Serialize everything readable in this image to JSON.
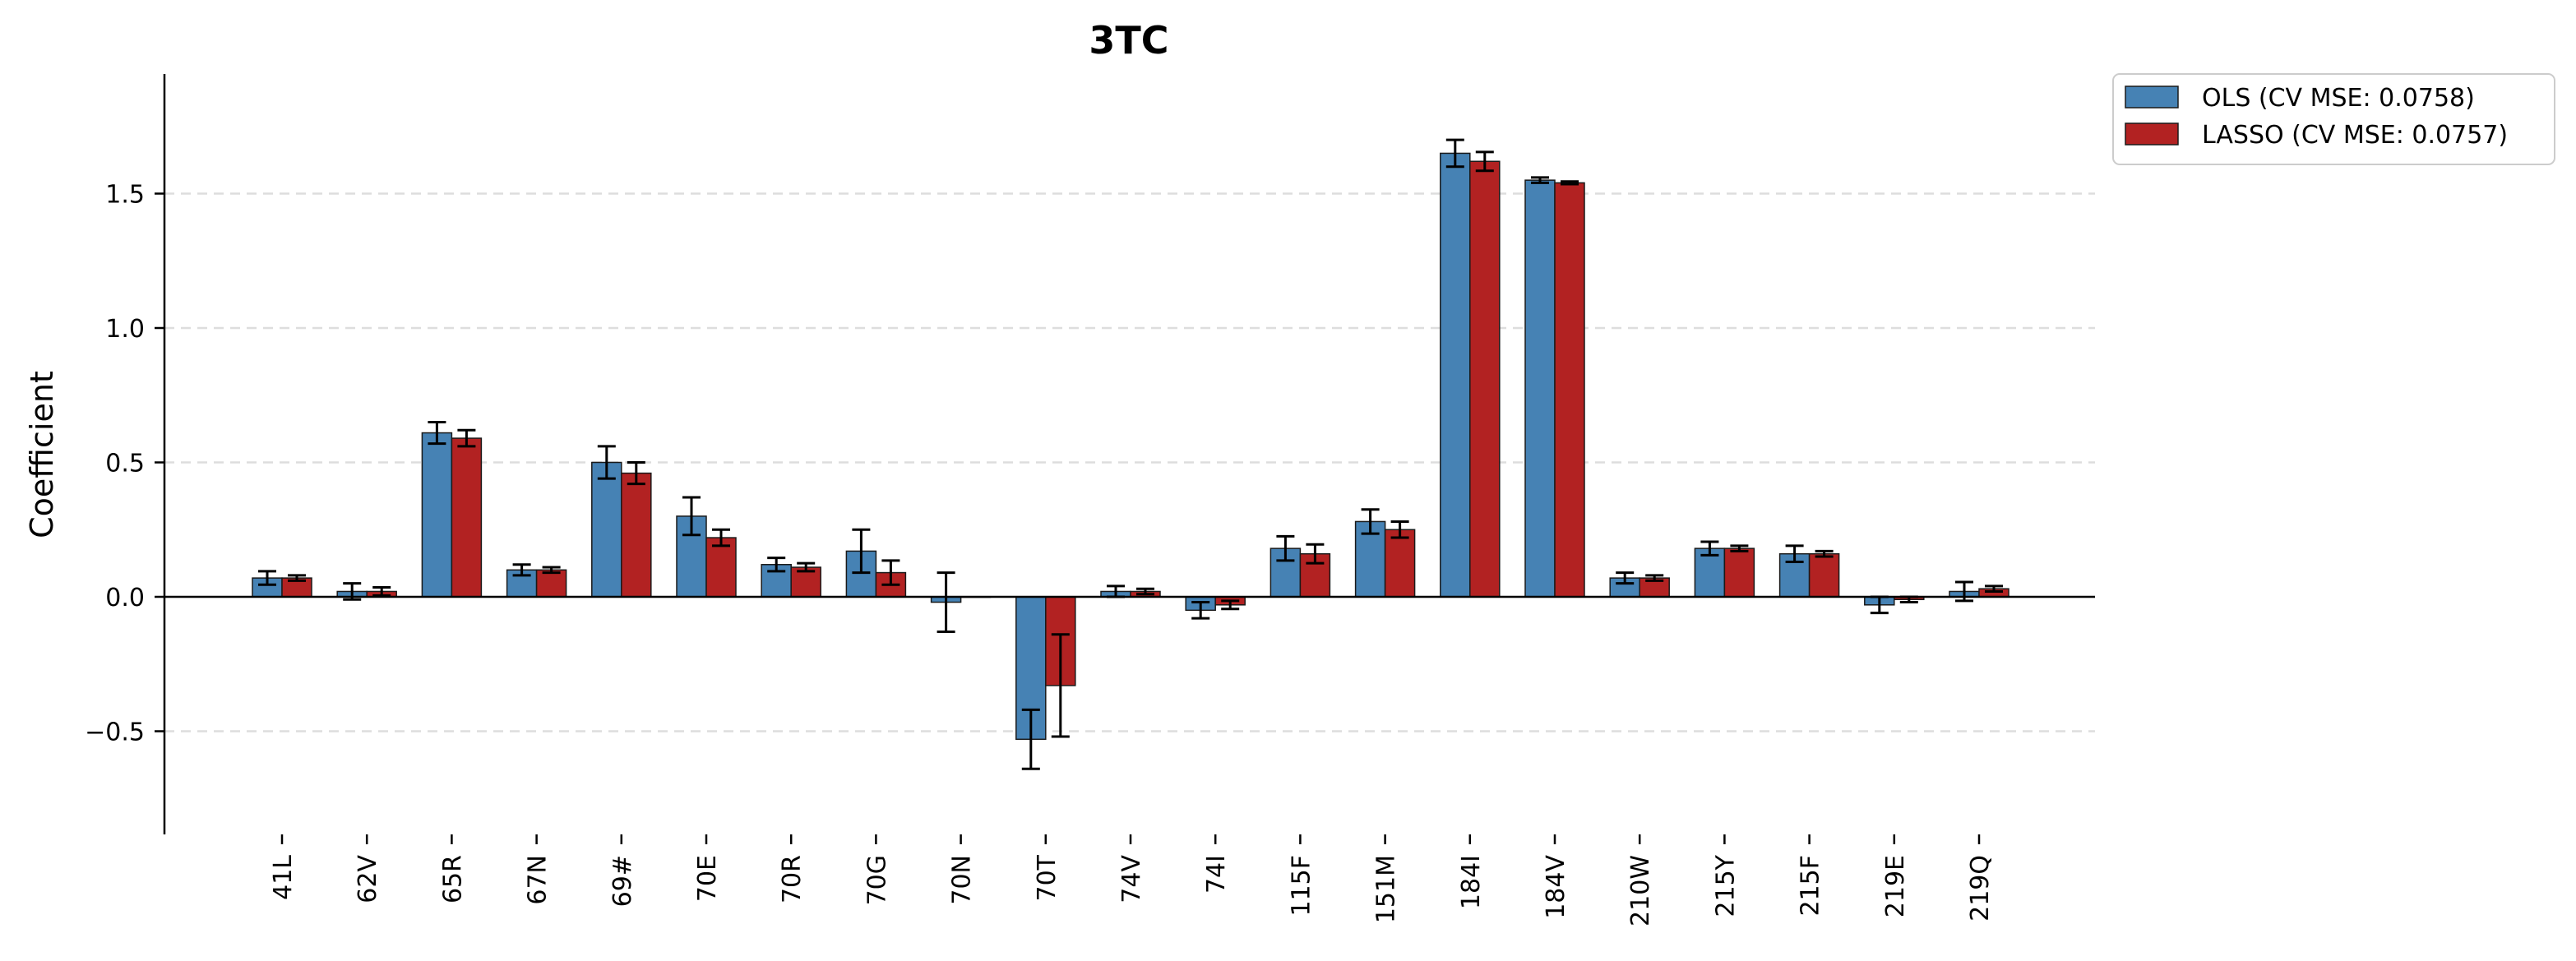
{
  "colors": {
    "ols": "#4682B4",
    "lasso": "#B22222",
    "grid": "#dddddd",
    "axis": "#000000",
    "error_bar": "#000000"
  },
  "chart_data": {
    "type": "bar",
    "title": "3TC",
    "xlabel": "",
    "ylabel": "Coefficient",
    "ylim": [
      -0.88,
      1.93
    ],
    "yticks": [
      -0.5,
      0.0,
      0.5,
      1.0,
      1.5
    ],
    "ytick_labels": [
      "−0.5",
      "0.0",
      "0.5",
      "1.0",
      "1.5"
    ],
    "grid": "horizontal dashed at y ticks",
    "legend_position": "top-right, outside plot",
    "categories": [
      "41L",
      "62V",
      "65R",
      "67N",
      "69#",
      "70E",
      "70R",
      "70G",
      "70N",
      "70T",
      "74V",
      "74I",
      "115F",
      "151M",
      "184I",
      "184V",
      "210W",
      "215Y",
      "215F",
      "219E",
      "219Q"
    ],
    "series": [
      {
        "name": "OLS (CV MSE: 0.0758)",
        "values": [
          0.07,
          0.02,
          0.61,
          0.1,
          0.5,
          0.3,
          0.12,
          0.17,
          -0.02,
          -0.53,
          0.02,
          -0.05,
          0.18,
          0.28,
          1.65,
          1.55,
          0.07,
          0.18,
          0.16,
          -0.03,
          0.02
        ],
        "errors": [
          0.025,
          0.03,
          0.04,
          0.02,
          0.06,
          0.07,
          0.025,
          0.08,
          0.11,
          0.11,
          0.02,
          0.03,
          0.045,
          0.045,
          0.05,
          0.01,
          0.02,
          0.025,
          0.03,
          0.03,
          0.035
        ]
      },
      {
        "name": "LASSO (CV MSE: 0.0757)",
        "values": [
          0.07,
          0.02,
          0.59,
          0.1,
          0.46,
          0.22,
          0.11,
          0.09,
          0.0,
          -0.33,
          0.02,
          -0.03,
          0.16,
          0.25,
          1.62,
          1.54,
          0.07,
          0.18,
          0.16,
          -0.01,
          0.03
        ],
        "errors": [
          0.01,
          0.015,
          0.03,
          0.01,
          0.04,
          0.03,
          0.015,
          0.045,
          0.0,
          0.19,
          0.01,
          0.015,
          0.035,
          0.03,
          0.035,
          0.005,
          0.01,
          0.01,
          0.01,
          0.01,
          0.01
        ]
      }
    ]
  }
}
